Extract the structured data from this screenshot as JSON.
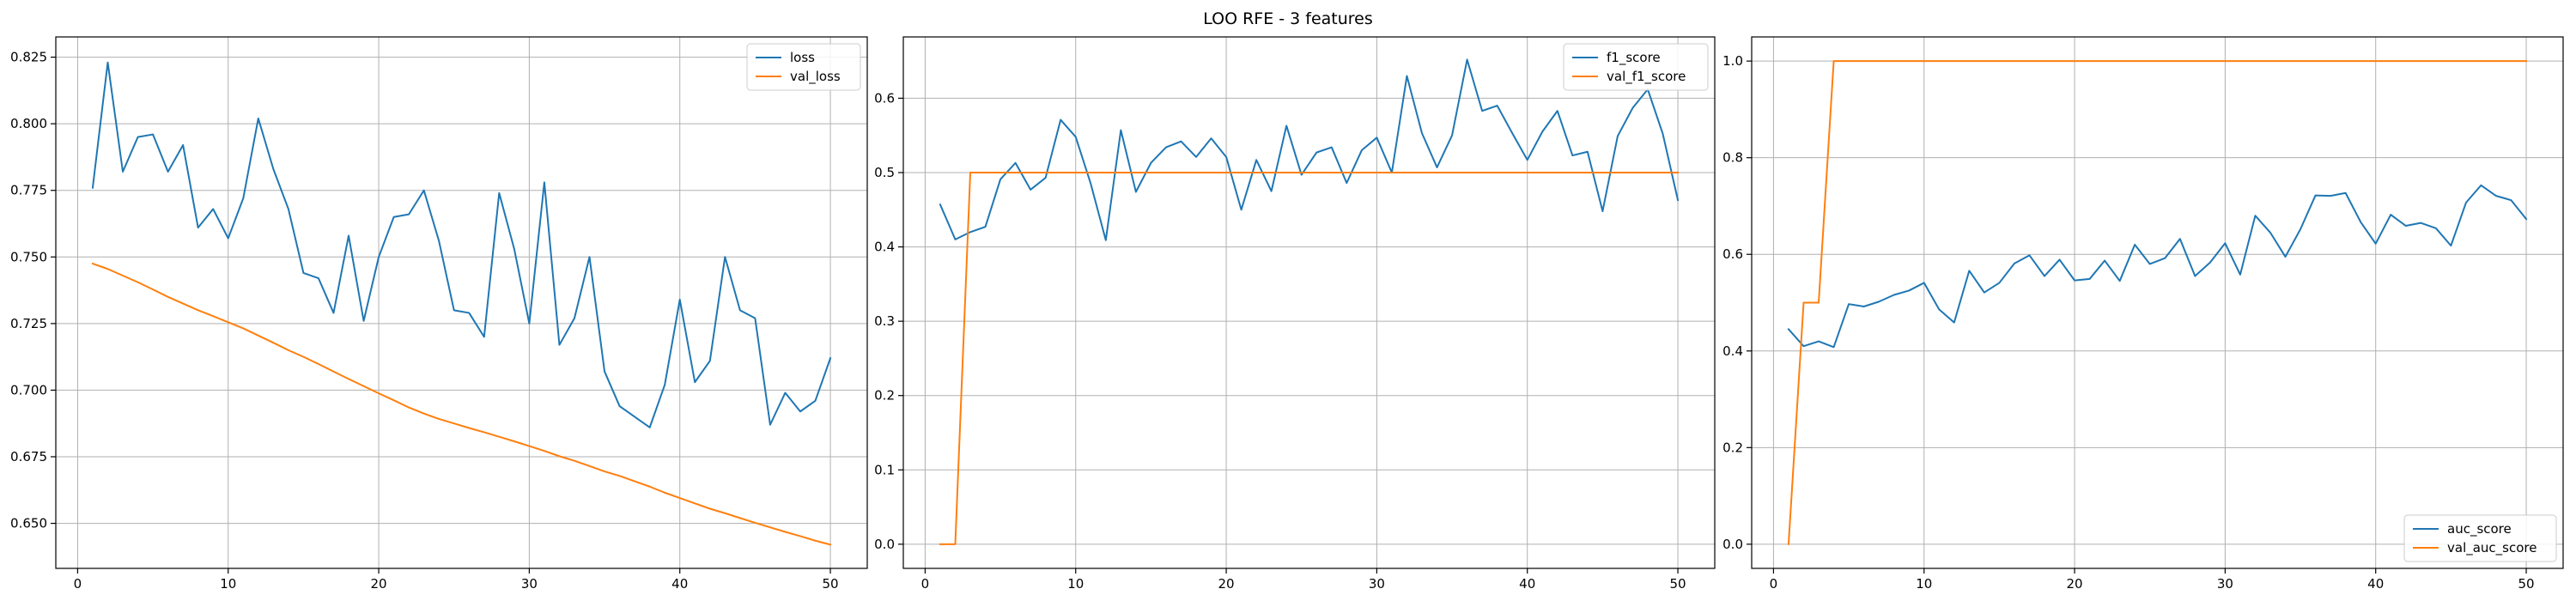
{
  "figure": {
    "title": "LOO RFE - 3 features"
  },
  "colors": {
    "series1": "#1f77b4",
    "series2": "#ff7f0e",
    "grid": "#b0b0b0",
    "axes": "#000000"
  },
  "chart_data": [
    {
      "type": "line",
      "title": "",
      "xlabel": "",
      "ylabel": "",
      "xlim": [
        -1.45,
        52.45
      ],
      "ylim": [
        0.6331,
        0.8326
      ],
      "xticks": [
        0,
        10,
        20,
        30,
        40,
        50
      ],
      "yticks": [
        0.65,
        0.675,
        0.7,
        0.725,
        0.75,
        0.775,
        0.8,
        0.825
      ],
      "ytick_labels": [
        "0.650",
        "0.675",
        "0.700",
        "0.725",
        "0.750",
        "0.775",
        "0.800",
        "0.825"
      ],
      "grid": true,
      "legend_position": "top-right",
      "series": [
        {
          "name": "loss",
          "color": "#1f77b4",
          "x": [
            1,
            2,
            3,
            4,
            5,
            6,
            7,
            8,
            9,
            10,
            11,
            12,
            13,
            14,
            15,
            16,
            17,
            18,
            19,
            20,
            21,
            22,
            23,
            24,
            25,
            26,
            27,
            28,
            29,
            30,
            31,
            32,
            33,
            34,
            35,
            36,
            37,
            38,
            39,
            40,
            41,
            42,
            43,
            44,
            45,
            46,
            47,
            48,
            49,
            50
          ],
          "y": [
            0.776,
            0.823,
            0.782,
            0.795,
            0.796,
            0.782,
            0.792,
            0.761,
            0.768,
            0.757,
            0.772,
            0.802,
            0.783,
            0.768,
            0.744,
            0.742,
            0.729,
            0.758,
            0.726,
            0.75,
            0.765,
            0.766,
            0.775,
            0.756,
            0.73,
            0.729,
            0.72,
            0.774,
            0.753,
            0.725,
            0.778,
            0.717,
            0.727,
            0.75,
            0.707,
            0.694,
            0.69,
            0.686,
            0.702,
            0.734,
            0.703,
            0.711,
            0.75,
            0.73,
            0.727,
            0.687,
            0.699,
            0.692,
            0.696,
            0.712
          ]
        },
        {
          "name": "val_loss",
          "color": "#ff7f0e",
          "x": [
            1,
            2,
            3,
            4,
            5,
            6,
            7,
            8,
            9,
            10,
            11,
            12,
            13,
            14,
            15,
            16,
            17,
            18,
            19,
            20,
            21,
            22,
            23,
            24,
            25,
            26,
            27,
            28,
            29,
            30,
            31,
            32,
            33,
            34,
            35,
            36,
            37,
            38,
            39,
            40,
            41,
            42,
            43,
            44,
            45,
            46,
            47,
            48,
            49,
            50
          ],
          "y": [
            0.7475,
            0.7455,
            0.743,
            0.7405,
            0.7378,
            0.735,
            0.7325,
            0.73,
            0.7278,
            0.7255,
            0.7232,
            0.7205,
            0.7178,
            0.715,
            0.7125,
            0.7098,
            0.707,
            0.7042,
            0.7015,
            0.6988,
            0.6962,
            0.6935,
            0.6912,
            0.6892,
            0.6875,
            0.6858,
            0.6842,
            0.6825,
            0.6808,
            0.679,
            0.6772,
            0.6752,
            0.6735,
            0.6715,
            0.6695,
            0.6678,
            0.6658,
            0.6638,
            0.6615,
            0.6595,
            0.6575,
            0.6555,
            0.6538,
            0.652,
            0.6502,
            0.6485,
            0.6468,
            0.6452,
            0.6435,
            0.642
          ]
        }
      ]
    },
    {
      "type": "line",
      "title": "",
      "xlabel": "",
      "ylabel": "",
      "xlim": [
        -1.45,
        52.45
      ],
      "ylim": [
        -0.0325,
        0.6825
      ],
      "xticks": [
        0,
        10,
        20,
        30,
        40,
        50
      ],
      "yticks": [
        0.0,
        0.1,
        0.2,
        0.3,
        0.4,
        0.5,
        0.6
      ],
      "ytick_labels": [
        "0.0",
        "0.1",
        "0.2",
        "0.3",
        "0.4",
        "0.5",
        "0.6"
      ],
      "grid": true,
      "legend_position": "top-right",
      "series": [
        {
          "name": "f1_score",
          "color": "#1f77b4",
          "x": [
            1,
            2,
            3,
            4,
            5,
            6,
            7,
            8,
            9,
            10,
            11,
            12,
            13,
            14,
            15,
            16,
            17,
            18,
            19,
            20,
            21,
            22,
            23,
            24,
            25,
            26,
            27,
            28,
            29,
            30,
            31,
            32,
            33,
            34,
            35,
            36,
            37,
            38,
            39,
            40,
            41,
            42,
            43,
            44,
            45,
            46,
            47,
            48,
            49,
            50
          ],
          "y": [
            0.457,
            0.41,
            0.42,
            0.427,
            0.491,
            0.513,
            0.477,
            0.493,
            0.571,
            0.548,
            0.485,
            0.409,
            0.557,
            0.474,
            0.513,
            0.534,
            0.542,
            0.521,
            0.546,
            0.521,
            0.45,
            0.517,
            0.475,
            0.563,
            0.497,
            0.527,
            0.534,
            0.486,
            0.53,
            0.547,
            0.5,
            0.63,
            0.553,
            0.507,
            0.55,
            0.652,
            0.583,
            0.59,
            0.553,
            0.517,
            0.555,
            0.583,
            0.523,
            0.528,
            0.448,
            0.549,
            0.587,
            0.612,
            0.552,
            0.463
          ]
        },
        {
          "name": "val_f1_score",
          "color": "#ff7f0e",
          "x": [
            1,
            2,
            3,
            4,
            5,
            6,
            7,
            8,
            9,
            10,
            11,
            12,
            13,
            14,
            15,
            16,
            17,
            18,
            19,
            20,
            21,
            22,
            23,
            24,
            25,
            26,
            27,
            28,
            29,
            30,
            31,
            32,
            33,
            34,
            35,
            36,
            37,
            38,
            39,
            40,
            41,
            42,
            43,
            44,
            45,
            46,
            47,
            48,
            49,
            50
          ],
          "y": [
            0,
            0,
            0.5,
            0.5,
            0.5,
            0.5,
            0.5,
            0.5,
            0.5,
            0.5,
            0.5,
            0.5,
            0.5,
            0.5,
            0.5,
            0.5,
            0.5,
            0.5,
            0.5,
            0.5,
            0.5,
            0.5,
            0.5,
            0.5,
            0.5,
            0.5,
            0.5,
            0.5,
            0.5,
            0.5,
            0.5,
            0.5,
            0.5,
            0.5,
            0.5,
            0.5,
            0.5,
            0.5,
            0.5,
            0.5,
            0.5,
            0.5,
            0.5,
            0.5,
            0.5,
            0.5,
            0.5,
            0.5,
            0.5,
            0.5
          ]
        }
      ]
    },
    {
      "type": "line",
      "title": "",
      "xlabel": "",
      "ylabel": "",
      "xlim": [
        -1.45,
        52.45
      ],
      "ylim": [
        -0.05,
        1.05
      ],
      "xticks": [
        0,
        10,
        20,
        30,
        40,
        50
      ],
      "yticks": [
        0.0,
        0.2,
        0.4,
        0.6,
        0.8,
        1.0
      ],
      "ytick_labels": [
        "0.0",
        "0.2",
        "0.4",
        "0.6",
        "0.8",
        "1.0"
      ],
      "grid": true,
      "legend_position": "bottom-right",
      "series": [
        {
          "name": "auc_score",
          "color": "#1f77b4",
          "x": [
            1,
            2,
            3,
            4,
            5,
            6,
            7,
            8,
            9,
            10,
            11,
            12,
            13,
            14,
            15,
            16,
            17,
            18,
            19,
            20,
            21,
            22,
            23,
            24,
            25,
            26,
            27,
            28,
            29,
            30,
            31,
            32,
            33,
            34,
            35,
            36,
            37,
            38,
            39,
            40,
            41,
            42,
            43,
            44,
            45,
            46,
            47,
            48,
            49,
            50
          ],
          "y": [
            0.445,
            0.41,
            0.42,
            0.408,
            0.497,
            0.492,
            0.502,
            0.516,
            0.525,
            0.541,
            0.486,
            0.459,
            0.566,
            0.521,
            0.541,
            0.581,
            0.598,
            0.555,
            0.589,
            0.546,
            0.549,
            0.587,
            0.545,
            0.62,
            0.58,
            0.592,
            0.632,
            0.555,
            0.583,
            0.623,
            0.558,
            0.68,
            0.645,
            0.595,
            0.652,
            0.722,
            0.721,
            0.727,
            0.667,
            0.622,
            0.682,
            0.659,
            0.665,
            0.654,
            0.618,
            0.707,
            0.743,
            0.721,
            0.712,
            0.673
          ]
        },
        {
          "name": "val_auc_score",
          "color": "#ff7f0e",
          "x": [
            1,
            2,
            3,
            4,
            5,
            6,
            7,
            8,
            9,
            10,
            11,
            12,
            13,
            14,
            15,
            16,
            17,
            18,
            19,
            20,
            21,
            22,
            23,
            24,
            25,
            26,
            27,
            28,
            29,
            30,
            31,
            32,
            33,
            34,
            35,
            36,
            37,
            38,
            39,
            40,
            41,
            42,
            43,
            44,
            45,
            46,
            47,
            48,
            49,
            50
          ],
          "y": [
            0,
            0.5,
            0.5,
            1,
            1,
            1,
            1,
            1,
            1,
            1,
            1,
            1,
            1,
            1,
            1,
            1,
            1,
            1,
            1,
            1,
            1,
            1,
            1,
            1,
            1,
            1,
            1,
            1,
            1,
            1,
            1,
            1,
            1,
            1,
            1,
            1,
            1,
            1,
            1,
            1,
            1,
            1,
            1,
            1,
            1,
            1,
            1,
            1,
            1,
            1
          ]
        }
      ]
    }
  ]
}
